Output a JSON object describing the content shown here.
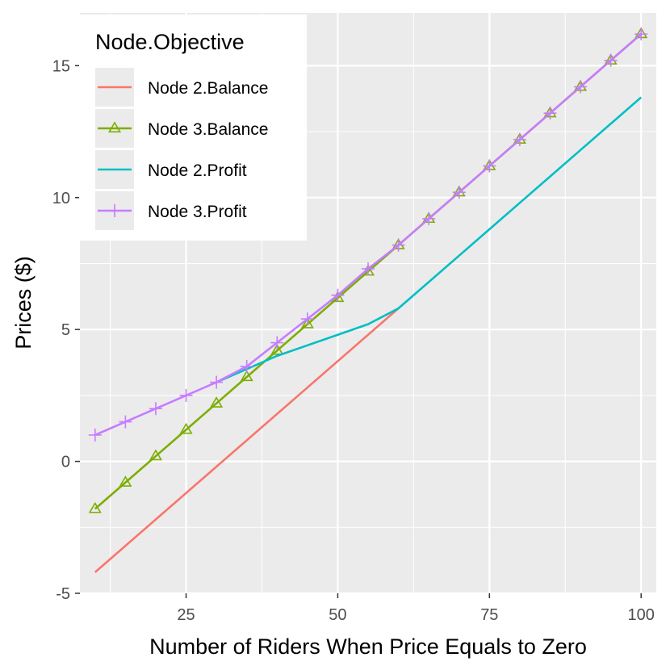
{
  "chart_data": {
    "type": "line",
    "xlabel": "Number of Riders When Price Equals to Zero",
    "ylabel": "Prices ($)",
    "xlim": [
      7.5,
      102.5
    ],
    "ylim": [
      -5,
      17
    ],
    "x_ticks": [
      25,
      50,
      75,
      100
    ],
    "x_tick_labels": [
      "25",
      "50",
      "75",
      "100"
    ],
    "y_ticks": [
      -5,
      0,
      5,
      10,
      15
    ],
    "y_tick_labels": [
      "-5",
      "0",
      "5",
      "10",
      "15"
    ],
    "grid": true,
    "legend": {
      "title": "Node.Objective",
      "position": "top-left"
    },
    "series": [
      {
        "name": "Node 2.Balance",
        "color": "#F8766D",
        "marker": "none",
        "x": [
          10,
          60
        ],
        "y": [
          -4.2,
          5.8
        ]
      },
      {
        "name": "Node 3.Balance",
        "color": "#7CAE00",
        "marker": "triangle",
        "x": [
          10,
          15,
          20,
          25,
          30,
          35,
          40,
          45,
          50,
          55,
          60,
          65,
          70,
          75,
          80,
          85,
          90,
          95,
          100
        ],
        "y": [
          -1.8,
          -0.8,
          0.2,
          1.2,
          2.2,
          3.2,
          4.2,
          5.2,
          6.2,
          7.2,
          8.2,
          9.2,
          10.2,
          11.2,
          12.2,
          13.2,
          14.2,
          15.2,
          16.2
        ]
      },
      {
        "name": "Node 2.Profit",
        "color": "#00BFC4",
        "marker": "none",
        "x": [
          30,
          35,
          40,
          45,
          50,
          55,
          60,
          65,
          70,
          75,
          80,
          85,
          90,
          95,
          100
        ],
        "y": [
          3.0,
          3.5,
          4.0,
          4.4,
          4.8,
          5.2,
          5.8,
          6.8,
          7.8,
          8.8,
          9.8,
          10.8,
          11.8,
          12.8,
          13.8
        ]
      },
      {
        "name": "Node 3.Profit",
        "color": "#C77CFF",
        "marker": "plus",
        "x": [
          10,
          15,
          20,
          25,
          30,
          35,
          40,
          45,
          50,
          55,
          60,
          65,
          70,
          75,
          80,
          85,
          90,
          95,
          100
        ],
        "y": [
          1.0,
          1.5,
          2.0,
          2.5,
          3.0,
          3.6,
          4.5,
          5.4,
          6.3,
          7.3,
          8.2,
          9.2,
          10.2,
          11.2,
          12.2,
          13.2,
          14.2,
          15.2,
          16.2
        ]
      }
    ]
  }
}
